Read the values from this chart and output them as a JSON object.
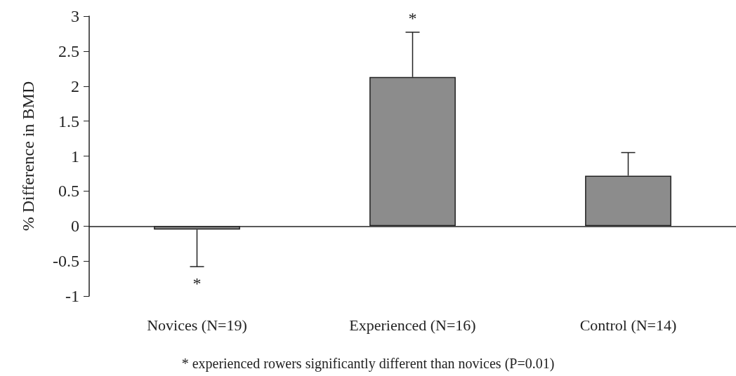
{
  "chart_data": {
    "type": "bar",
    "ylabel": "% Difference in BMD",
    "categories": [
      "Novices (N=19)",
      "Experienced (N=16)",
      "Control (N=14)"
    ],
    "values": [
      -0.05,
      2.13,
      0.72
    ],
    "color": "#8c8c8c",
    "errors": [
      [
        -0.58,
        -0.05
      ],
      [
        2.13,
        2.77
      ],
      [
        0.72,
        1.05
      ]
    ],
    "ylim": [
      -1,
      3
    ],
    "yticks": [
      -1,
      -0.5,
      0,
      0.5,
      1,
      1.5,
      2,
      2.5,
      3
    ],
    "annotations": [
      "*",
      "*",
      "* experienced rowers significantly different than novices (P=0.01)"
    ]
  }
}
